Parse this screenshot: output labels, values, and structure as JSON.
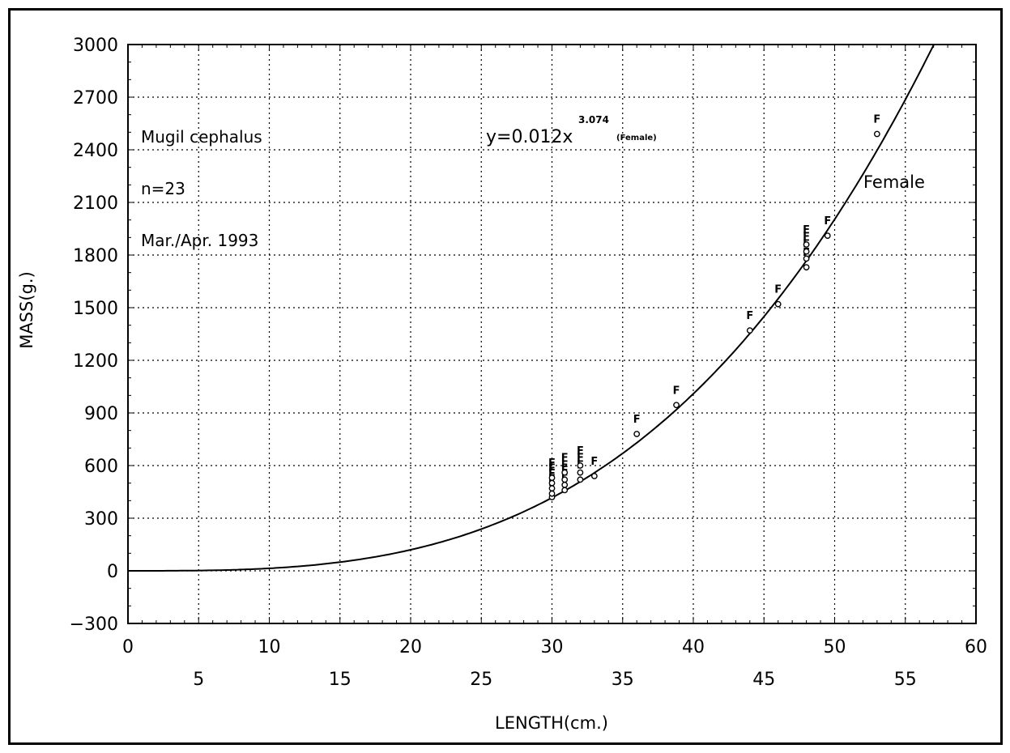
{
  "chart_data": {
    "type": "scatter",
    "xlabel": "LENGTH(cm.)",
    "ylabel": "MASS(g.)",
    "xlim": [
      0,
      60
    ],
    "ylim": [
      -300,
      3000
    ],
    "grid": true,
    "x_ticks_upper": [
      "0",
      "10",
      "20",
      "30",
      "40",
      "50",
      "60"
    ],
    "x_ticks_lower": [
      "5",
      "15",
      "25",
      "35",
      "45",
      "55"
    ],
    "y_ticks": [
      "3000",
      "2700",
      "2400",
      "2100",
      "1800",
      "1500",
      "1200",
      "900",
      "600",
      "300",
      "0",
      "−300"
    ],
    "annotations": {
      "species": "Mugil cephalus",
      "n": "n=23",
      "date": "Mar./Apr. 1993",
      "eq_base": "y=0.012x",
      "eq_exp": "3.074",
      "eq_tag": "(Female)",
      "curve_label": "Female"
    },
    "fit": {
      "a": 0.012,
      "b": 3.074,
      "name": "Female"
    },
    "point_marker": "F",
    "series": [
      {
        "name": "Female",
        "points": [
          {
            "x": 30.0,
            "y": 420
          },
          {
            "x": 30.0,
            "y": 440
          },
          {
            "x": 30.0,
            "y": 470
          },
          {
            "x": 30.0,
            "y": 500
          },
          {
            "x": 30.0,
            "y": 530
          },
          {
            "x": 30.9,
            "y": 460
          },
          {
            "x": 30.9,
            "y": 490
          },
          {
            "x": 30.9,
            "y": 520
          },
          {
            "x": 30.9,
            "y": 560
          },
          {
            "x": 32.0,
            "y": 520
          },
          {
            "x": 32.0,
            "y": 560
          },
          {
            "x": 32.0,
            "y": 600
          },
          {
            "x": 33.0,
            "y": 540
          },
          {
            "x": 36.0,
            "y": 780
          },
          {
            "x": 38.8,
            "y": 945
          },
          {
            "x": 44.0,
            "y": 1370
          },
          {
            "x": 46.0,
            "y": 1520
          },
          {
            "x": 48.0,
            "y": 1730
          },
          {
            "x": 48.0,
            "y": 1780
          },
          {
            "x": 48.0,
            "y": 1820
          },
          {
            "x": 48.0,
            "y": 1860
          },
          {
            "x": 49.5,
            "y": 1910
          },
          {
            "x": 53.0,
            "y": 2490
          }
        ]
      }
    ]
  }
}
